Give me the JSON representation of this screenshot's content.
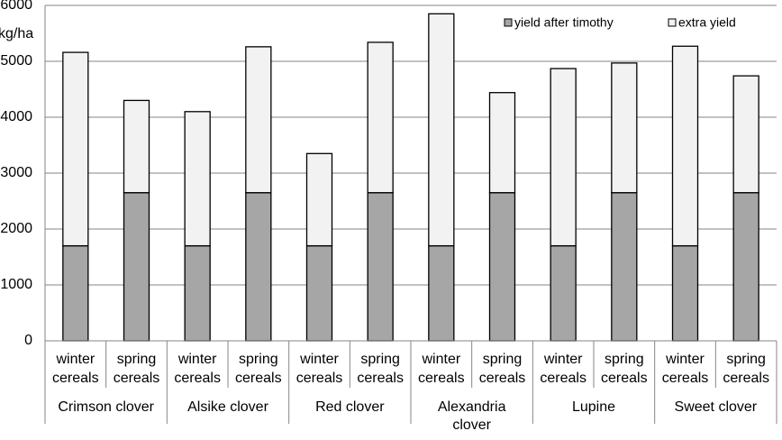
{
  "chart_data": {
    "type": "stacked-bar",
    "y_axis_label": "kg/ha",
    "categories": [
      "winter cereals",
      "spring cereals",
      "winter cereals",
      "spring cereals",
      "winter cereals",
      "spring cereals",
      "winter cereals",
      "spring cereals",
      "winter cereals",
      "spring cereals",
      "winter cereals",
      "spring cereals"
    ],
    "groups": [
      "Crimson clover",
      "Alsike clover",
      "Red clover",
      "Alexandria clover",
      "Lupine",
      "Sweet clover"
    ],
    "series": [
      {
        "name": "yield after timothy",
        "color": "#a6a6a6",
        "values": [
          1700,
          2650,
          1700,
          2650,
          1700,
          2650,
          1700,
          2650,
          1700,
          2650,
          1700,
          2650
        ]
      },
      {
        "name": "extra yield",
        "color": "#f2f2f2",
        "values": [
          3460,
          1650,
          2400,
          2610,
          1650,
          2690,
          4150,
          1790,
          3170,
          2320,
          3570,
          2090
        ]
      }
    ],
    "ylim": [
      0,
      6000
    ],
    "yticks": [
      0,
      1000,
      2000,
      3000,
      4000,
      5000,
      6000
    ],
    "grid": true
  }
}
